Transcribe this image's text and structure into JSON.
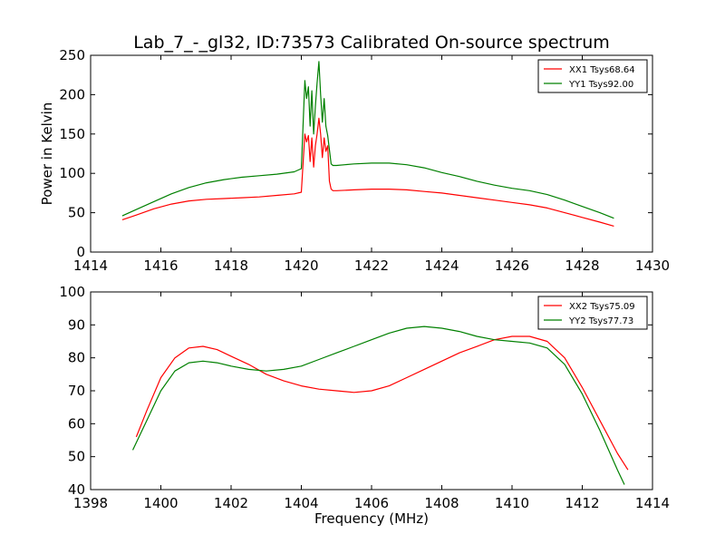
{
  "figure": {
    "title": "Lab_7_-_gl32, ID:73573 Calibrated On-source spectrum"
  },
  "chart_data": [
    {
      "type": "line",
      "title": "Lab_7_-_gl32, ID:73573 Calibrated On-source spectrum",
      "xlabel": "",
      "ylabel": "Power in Kelvin",
      "xlim": [
        1414,
        1430
      ],
      "ylim": [
        0,
        250
      ],
      "xticks": [
        "1414",
        "1416",
        "1418",
        "1420",
        "1422",
        "1424",
        "1426",
        "1428",
        "1430"
      ],
      "yticks": [
        "0",
        "50",
        "100",
        "150",
        "200",
        "250"
      ],
      "grid": false,
      "legend": "top-right",
      "series": [
        {
          "name": "XX1 Tsys68.64",
          "color": "#ff0000",
          "x": [
            1414.9,
            1415.3,
            1415.8,
            1416.3,
            1416.8,
            1417.3,
            1417.8,
            1418.3,
            1418.8,
            1419.3,
            1419.8,
            1420.0,
            1420.1,
            1420.15,
            1420.2,
            1420.25,
            1420.3,
            1420.35,
            1420.4,
            1420.45,
            1420.5,
            1420.55,
            1420.6,
            1420.65,
            1420.7,
            1420.75,
            1420.8,
            1420.85,
            1420.9,
            1421.0,
            1421.5,
            1422.0,
            1422.5,
            1423.0,
            1423.5,
            1424.0,
            1424.5,
            1425.0,
            1425.5,
            1426.0,
            1426.5,
            1427.0,
            1427.5,
            1428.0,
            1428.5,
            1428.9
          ],
          "y": [
            41,
            47,
            55,
            61,
            65,
            67,
            68,
            69,
            70,
            72,
            74,
            76,
            150,
            140,
            148,
            115,
            145,
            108,
            135,
            150,
            170,
            150,
            120,
            145,
            128,
            135,
            90,
            80,
            78,
            78,
            79,
            80,
            80,
            79,
            77,
            75,
            72,
            69,
            66,
            63,
            60,
            56,
            50,
            44,
            38,
            33
          ]
        },
        {
          "name": "YY1 Tsys92.00",
          "color": "#008000",
          "x": [
            1414.9,
            1415.3,
            1415.8,
            1416.3,
            1416.8,
            1417.3,
            1417.8,
            1418.3,
            1418.8,
            1419.3,
            1419.8,
            1420.0,
            1420.1,
            1420.15,
            1420.2,
            1420.25,
            1420.3,
            1420.35,
            1420.4,
            1420.45,
            1420.5,
            1420.55,
            1420.6,
            1420.65,
            1420.7,
            1420.75,
            1420.8,
            1420.85,
            1420.9,
            1421.0,
            1421.5,
            1422.0,
            1422.5,
            1423.0,
            1423.5,
            1424.0,
            1424.5,
            1425.0,
            1425.5,
            1426.0,
            1426.5,
            1427.0,
            1427.5,
            1428.0,
            1428.5,
            1428.9
          ],
          "y": [
            46,
            54,
            64,
            74,
            82,
            88,
            92,
            95,
            97,
            99,
            102,
            106,
            218,
            195,
            210,
            160,
            205,
            150,
            185,
            215,
            242,
            200,
            165,
            195,
            160,
            148,
            130,
            112,
            110,
            110,
            112,
            113,
            113,
            111,
            107,
            101,
            96,
            90,
            85,
            81,
            78,
            73,
            66,
            58,
            50,
            43
          ]
        }
      ]
    },
    {
      "type": "line",
      "title": "",
      "xlabel": "Frequency (MHz)",
      "ylabel": "",
      "xlim": [
        1398,
        1414
      ],
      "ylim": [
        40,
        100
      ],
      "xticks": [
        "1398",
        "1400",
        "1402",
        "1404",
        "1406",
        "1408",
        "1410",
        "1412",
        "1414"
      ],
      "yticks": [
        "40",
        "50",
        "60",
        "70",
        "80",
        "90",
        "100"
      ],
      "grid": false,
      "legend": "top-right",
      "series": [
        {
          "name": "XX2 Tsys75.09",
          "color": "#ff0000",
          "x": [
            1399.3,
            1399.6,
            1400.0,
            1400.4,
            1400.8,
            1401.2,
            1401.6,
            1402.0,
            1402.5,
            1403.0,
            1403.5,
            1404.0,
            1404.5,
            1405.0,
            1405.5,
            1406.0,
            1406.5,
            1407.0,
            1407.5,
            1408.0,
            1408.5,
            1409.0,
            1409.5,
            1410.0,
            1410.5,
            1411.0,
            1411.5,
            1412.0,
            1412.5,
            1413.0,
            1413.3
          ],
          "y": [
            56,
            64,
            74,
            80,
            83,
            83.5,
            82.5,
            80.5,
            78,
            75,
            73,
            71.5,
            70.5,
            70,
            69.5,
            70,
            71.5,
            74,
            76.5,
            79,
            81.5,
            83.5,
            85.5,
            86.5,
            86.5,
            85,
            80,
            71,
            61,
            51,
            46
          ]
        },
        {
          "name": "YY2 Tsys77.73",
          "color": "#008000",
          "x": [
            1399.2,
            1399.6,
            1400.0,
            1400.4,
            1400.8,
            1401.2,
            1401.6,
            1402.0,
            1402.5,
            1403.0,
            1403.5,
            1404.0,
            1404.5,
            1405.0,
            1405.5,
            1406.0,
            1406.5,
            1407.0,
            1407.5,
            1408.0,
            1408.5,
            1409.0,
            1409.5,
            1410.0,
            1410.5,
            1411.0,
            1411.5,
            1412.0,
            1412.5,
            1413.0,
            1413.2
          ],
          "y": [
            52,
            61,
            70,
            76,
            78.5,
            79,
            78.5,
            77.5,
            76.5,
            76,
            76.5,
            77.5,
            79.5,
            81.5,
            83.5,
            85.5,
            87.5,
            89,
            89.5,
            89,
            88,
            86.5,
            85.5,
            85,
            84.5,
            83,
            78,
            69,
            58,
            46,
            41.5
          ]
        }
      ]
    }
  ]
}
